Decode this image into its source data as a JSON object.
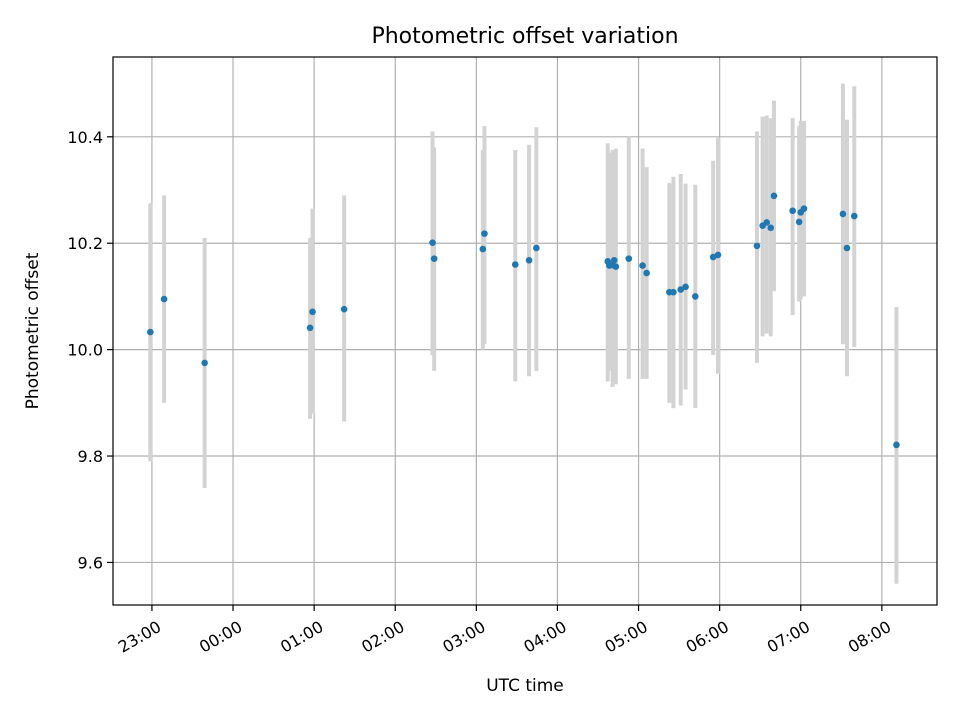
{
  "chart_data": {
    "type": "scatter",
    "title": "Photometric offset variation",
    "xlabel": "UTC time",
    "ylabel": "Photometric offset",
    "xlim": [
      -0.48,
      9.68
    ],
    "ylim": [
      9.52,
      10.55
    ],
    "x_tick_values": [
      0,
      1,
      2,
      3,
      4,
      5,
      6,
      7,
      8,
      9
    ],
    "x_tick_labels": [
      "23:00",
      "00:00",
      "01:00",
      "02:00",
      "03:00",
      "04:00",
      "05:00",
      "06:00",
      "07:00",
      "08:00"
    ],
    "y_tick_values": [
      9.6,
      9.8,
      10.0,
      10.2,
      10.4
    ],
    "y_tick_labels": [
      "9.6",
      "9.8",
      "10.0",
      "10.2",
      "10.4"
    ],
    "grid": true,
    "series": [
      {
        "name": "offset",
        "x_hours_since_23": [
          -0.02,
          0.15,
          0.65,
          1.95,
          1.98,
          2.37,
          3.46,
          3.48,
          4.1,
          4.08,
          4.48,
          4.65,
          4.74,
          5.62,
          5.64,
          5.68,
          5.7,
          5.72,
          5.88,
          6.05,
          6.1,
          6.38,
          6.43,
          6.52,
          6.58,
          6.7,
          6.92,
          6.98,
          7.46,
          7.53,
          7.58,
          7.63,
          7.67,
          7.9,
          7.98,
          8.0,
          8.04,
          8.52,
          8.57,
          8.66,
          9.18
        ],
        "y": [
          10.033,
          10.095,
          9.975,
          10.041,
          10.071,
          10.076,
          10.201,
          10.171,
          10.218,
          10.189,
          10.16,
          10.168,
          10.191,
          10.166,
          10.158,
          10.159,
          10.168,
          10.156,
          10.171,
          10.158,
          10.144,
          10.108,
          10.108,
          10.113,
          10.118,
          10.1,
          10.174,
          10.178,
          10.195,
          10.233,
          10.239,
          10.229,
          10.289,
          10.261,
          10.24,
          10.258,
          10.265,
          10.255,
          10.191,
          10.251,
          9.821
        ],
        "y_err_low": [
          9.79,
          9.9,
          9.74,
          9.87,
          9.88,
          9.865,
          9.99,
          9.96,
          10.01,
          10.0,
          9.94,
          9.95,
          9.96,
          9.94,
          9.96,
          9.93,
          9.94,
          9.935,
          9.945,
          9.945,
          9.945,
          9.9,
          9.89,
          9.895,
          9.925,
          9.89,
          9.99,
          9.955,
          9.975,
          10.025,
          10.03,
          10.025,
          10.11,
          10.065,
          10.09,
          10.095,
          10.1,
          10.01,
          9.95,
          10.005,
          9.56
        ],
        "y_err_high": [
          10.275,
          10.29,
          10.21,
          10.21,
          10.265,
          10.29,
          10.41,
          10.38,
          10.42,
          10.375,
          10.375,
          10.385,
          10.418,
          10.388,
          10.37,
          10.375,
          10.375,
          10.378,
          10.4,
          10.378,
          10.343,
          10.313,
          10.325,
          10.33,
          10.312,
          10.31,
          10.355,
          10.398,
          10.41,
          10.438,
          10.44,
          10.435,
          10.468,
          10.435,
          10.42,
          10.43,
          10.43,
          10.5,
          10.432,
          10.495,
          10.08
        ]
      }
    ]
  }
}
